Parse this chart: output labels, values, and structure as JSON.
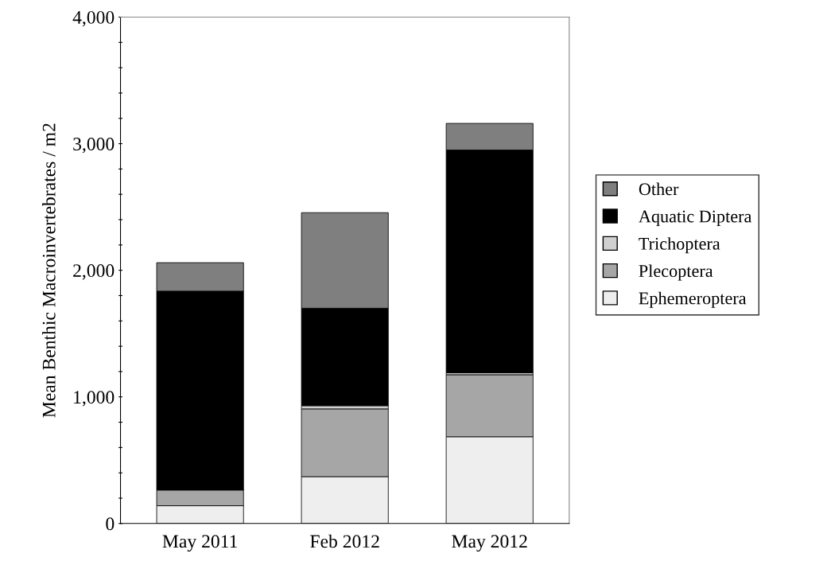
{
  "chart_data": {
    "type": "bar",
    "stacked": true,
    "ylabel": "Mean Benthic Macroinvertebrates / m2",
    "categories": [
      "May 2011",
      "Feb 2012",
      "May 2012"
    ],
    "series": [
      {
        "name": "Ephemeroptera",
        "color": "#eeeeee",
        "values": [
          140,
          370,
          685
        ]
      },
      {
        "name": "Plecoptera",
        "color": "#a6a6a6",
        "values": [
          125,
          535,
          490
        ]
      },
      {
        "name": "Trichoptera",
        "color": "#d0d0d0",
        "values": [
          0,
          25,
          15
        ]
      },
      {
        "name": "Aquatic Diptera",
        "color": "#000000",
        "values": [
          1570,
          770,
          1760
        ]
      },
      {
        "name": "Other",
        "color": "#7f7f7f",
        "values": [
          225,
          755,
          210
        ]
      }
    ],
    "ylim": [
      0,
      4000
    ],
    "yticks": [
      {
        "value": 0,
        "label": "0"
      },
      {
        "value": 200,
        "label": null
      },
      {
        "value": 400,
        "label": null
      },
      {
        "value": 600,
        "label": null
      },
      {
        "value": 800,
        "label": null
      },
      {
        "value": 1000,
        "label": "1,000"
      },
      {
        "value": 1200,
        "label": null
      },
      {
        "value": 1400,
        "label": null
      },
      {
        "value": 1600,
        "label": null
      },
      {
        "value": 1800,
        "label": null
      },
      {
        "value": 2000,
        "label": "2,000"
      },
      {
        "value": 2200,
        "label": null
      },
      {
        "value": 2400,
        "label": null
      },
      {
        "value": 2600,
        "label": null
      },
      {
        "value": 2800,
        "label": null
      },
      {
        "value": 3000,
        "label": "3,000"
      },
      {
        "value": 3200,
        "label": null
      },
      {
        "value": 3400,
        "label": null
      },
      {
        "value": 3600,
        "label": null
      },
      {
        "value": 3800,
        "label": null
      },
      {
        "value": 4000,
        "label": "4,000"
      }
    ],
    "grid": false,
    "legend": "right"
  }
}
